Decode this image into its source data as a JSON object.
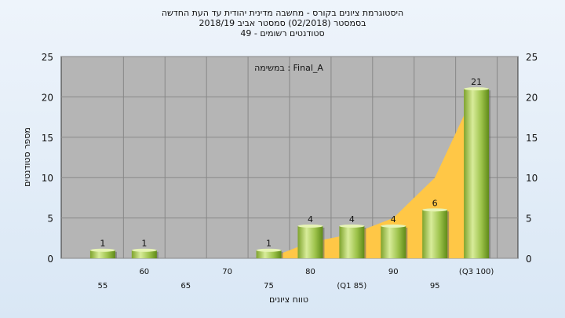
{
  "header": {
    "line1": "היסטוגרמת ציונים בקורס - מחשבה מדינית יהודית עד העת החדשה",
    "line2": "בסמסטר  (02/2018)  סמסטר אביב 2018/19",
    "line3": "סטודנטים רשומים - 49"
  },
  "annotation": "במשימה : Final_A",
  "colors": {
    "plot_bg": "#b5b5b5",
    "bar_light": "#d8ec9a",
    "bar_dark": "#6f9a22",
    "area": "#ffc746",
    "grid": "#888888"
  },
  "chart_data": {
    "type": "bar",
    "categories": [
      "55",
      "60",
      "65",
      "70",
      "75",
      "80",
      "(Q1 85)",
      "90",
      "95",
      "(Q3 100)"
    ],
    "values": [
      1,
      1,
      0,
      0,
      1,
      4,
      4,
      4,
      6,
      21
    ],
    "cumulative_area": [
      0,
      0,
      0,
      0,
      0,
      2,
      3,
      5,
      10,
      21
    ],
    "xlabel": "טווח ציונים",
    "ylabel": "מספר סטודנטים",
    "ylim": [
      0,
      25
    ],
    "yticks": [
      0,
      5,
      10,
      15,
      20,
      25
    ],
    "grid": true,
    "secondary_y_axis": true
  }
}
